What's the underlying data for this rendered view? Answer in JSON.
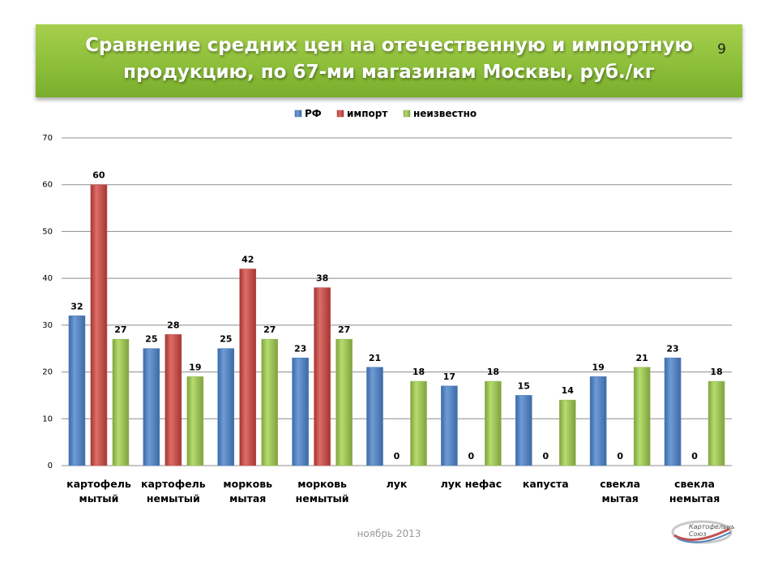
{
  "slide": {
    "title_line1": "Сравнение средних цен на отечественную и импортную",
    "title_line2": "продукцию, по 67-ми магазинам Москвы, руб./кг",
    "number": "9",
    "footer_date": "ноябрь 2013",
    "logo_text": "Картофельный Союз"
  },
  "colors": {
    "banner": "#8dbf3a",
    "rf": "#4f81bd",
    "import": "#c0504d",
    "unknown": "#9bbb59"
  },
  "chart_data": {
    "type": "bar",
    "categories": [
      [
        "картофель",
        "мытый"
      ],
      [
        "картофель",
        "немытый"
      ],
      [
        "морковь",
        "мытая"
      ],
      [
        "морковь",
        "немытый"
      ],
      [
        "лук"
      ],
      [
        "лук нефас"
      ],
      [
        "капуста"
      ],
      [
        "свекла",
        "мытая"
      ],
      [
        "свекла",
        "немытая"
      ]
    ],
    "series": [
      {
        "name": "РФ",
        "color": "#4f81bd",
        "values": [
          32,
          25,
          25,
          23,
          21,
          17,
          15,
          19,
          23
        ]
      },
      {
        "name": "импорт",
        "color": "#c0504d",
        "values": [
          60,
          28,
          42,
          38,
          0,
          0,
          0,
          0,
          0
        ]
      },
      {
        "name": "неизвестно",
        "color": "#9bbb59",
        "values": [
          27,
          19,
          27,
          27,
          18,
          18,
          14,
          21,
          18
        ]
      }
    ],
    "ylim": [
      0,
      70
    ],
    "yticks": [
      0,
      10,
      20,
      30,
      40,
      50,
      60,
      70
    ],
    "grid": true,
    "legend_position": "top",
    "data_labels": true
  }
}
